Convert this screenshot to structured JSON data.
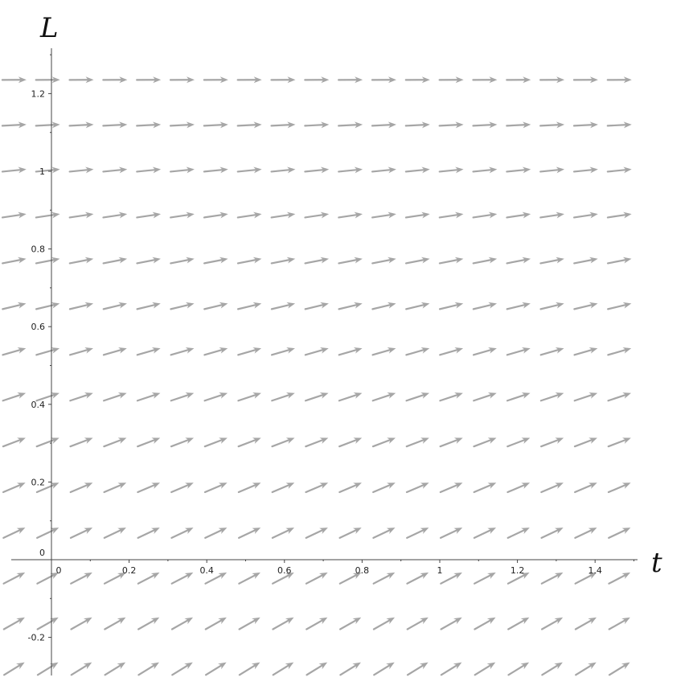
{
  "chart_data": {
    "type": "vector_field",
    "xlabel": "t",
    "ylabel": "L",
    "xlim": [
      -0.1,
      1.5
    ],
    "ylim": [
      -0.29,
      1.32
    ],
    "x_ticks": [
      0,
      0.2,
      0.4,
      0.6,
      0.8,
      1,
      1.2,
      1.4
    ],
    "x_tick_labels": [
      "0",
      "0.2",
      "0.4",
      "0.6",
      "0.8",
      "1",
      "1.2",
      "1.4"
    ],
    "y_ticks": [
      -0.2,
      0,
      0.2,
      0.4,
      0.6,
      0.8,
      1,
      1.2
    ],
    "y_tick_labels": [
      "-0.2",
      "0",
      "0.2",
      "0.4",
      "0.6",
      "0.8",
      "1",
      "1.2"
    ],
    "field": {
      "t_start": -0.0955,
      "t_step": 0.0866,
      "t_count": 19,
      "L_start": -0.2804,
      "L_step": 0.1166,
      "L_count": 14,
      "slope_at_L0": 0.5,
      "slope_decrease_per_L": 0.4
    },
    "arrow_color": "#a6a6a6"
  }
}
